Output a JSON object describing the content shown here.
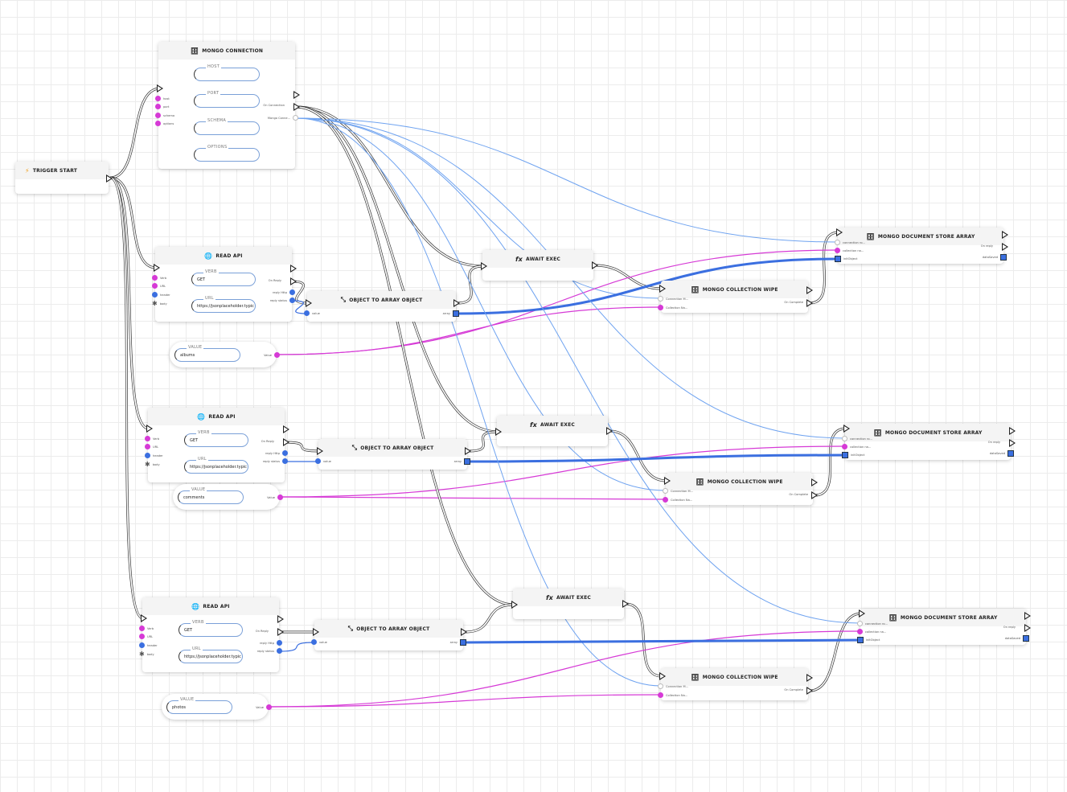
{
  "colors": {
    "exec": "#333333",
    "mongo": "#6fa3f0",
    "string": "#d63ad6",
    "object": "#3b6fe0"
  },
  "trigger": {
    "title": "TRIGGER START",
    "icon": "lightning-icon"
  },
  "mongo": {
    "title": "MONGO CONNECTION",
    "icon": "database-icon",
    "inputs": [
      "host",
      "port",
      "schema",
      "options"
    ],
    "fields": [
      "HOST",
      "PORT",
      "SCHEMA",
      "OPTIONS"
    ],
    "outputs": [
      "On Connection",
      "Mongo Conne..."
    ]
  },
  "read_api": {
    "title": "READ API",
    "icon": "globe-icon",
    "inputs": [
      "Verb",
      "URL",
      "header",
      "body"
    ],
    "verb_label": "VERB",
    "verb": "GET",
    "url_label": "URL",
    "url": "https://jsonplaceholder.typic",
    "outputs": [
      "On Reply",
      "reply Http",
      "reply status"
    ]
  },
  "values": [
    {
      "label": "VALUE",
      "value": "albums",
      "out": "Value"
    },
    {
      "label": "VALUE",
      "value": "comments",
      "out": "Value"
    },
    {
      "label": "VALUE",
      "value": "photos",
      "out": "Value"
    }
  ],
  "obj2arr": {
    "title": "OBJECT TO ARRAY OBJECT",
    "icon": "transform-icon",
    "input": "value",
    "output": "array"
  },
  "await": {
    "title": "AWAIT EXEC",
    "icon": "function-icon"
  },
  "wipe": {
    "title": "MONGO COLLECTION WIPE",
    "icon": "database-icon",
    "inputs": [
      "Connection M...",
      "Collection Na..."
    ],
    "output": "On Complete"
  },
  "store": {
    "title": "MONGO DOCUMENT STORE ARRAY",
    "icon": "database-icon",
    "inputs": [
      "connection ro...",
      "collection na...",
      "initObject"
    ],
    "outputs": [
      "On reply",
      "dataSaved"
    ]
  }
}
